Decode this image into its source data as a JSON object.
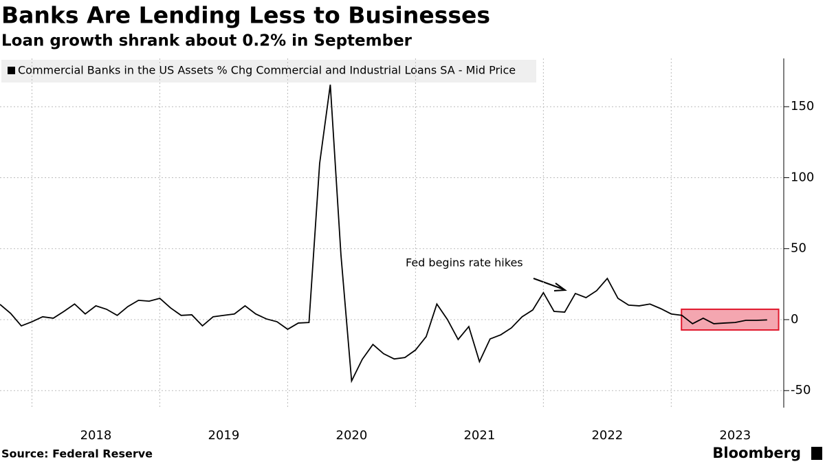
{
  "chart_data": {
    "type": "line",
    "title": "Banks Are Lending Less to Businesses",
    "subtitle": "Loan growth shrank about 0.2% in September",
    "source": "Source: Federal Reserve",
    "brand": "Bloomberg",
    "annotation": "Fed begins rate hikes",
    "x": [
      2017.75,
      2017.8333,
      2017.9167,
      2018,
      2018.0833,
      2018.1667,
      2018.25,
      2018.3333,
      2018.4167,
      2018.5,
      2018.5833,
      2018.6667,
      2018.75,
      2018.8333,
      2018.9167,
      2019,
      2019.0833,
      2019.1667,
      2019.25,
      2019.3333,
      2019.4167,
      2019.5,
      2019.5833,
      2019.6667,
      2019.75,
      2019.8333,
      2019.9167,
      2020,
      2020.0833,
      2020.1667,
      2020.25,
      2020.3333,
      2020.4167,
      2020.5,
      2020.5833,
      2020.6667,
      2020.75,
      2020.8333,
      2020.9167,
      2021,
      2021.0833,
      2021.1667,
      2021.25,
      2021.3333,
      2021.4167,
      2021.5,
      2021.5833,
      2021.6667,
      2021.75,
      2021.8333,
      2021.9167,
      2022,
      2022.0833,
      2022.1667,
      2022.25,
      2022.3333,
      2022.4167,
      2022.5,
      2022.5833,
      2022.6667,
      2022.75,
      2022.8333,
      2022.9167,
      2023,
      2023.0833,
      2023.1667,
      2023.25,
      2023.3333,
      2023.4167,
      2023.5,
      2023.5833,
      2023.6667,
      2023.75
    ],
    "series": [
      {
        "name": "Commercial Banks in the US Assets % Chg Commercial and Industrial Loans SA - Mid Price",
        "color": "#000000",
        "values": [
          10.7,
          4.4,
          -4.4,
          -1.5,
          2,
          1,
          5.8,
          11,
          4,
          9.7,
          7.3,
          3,
          9.2,
          13.6,
          13,
          15,
          8.3,
          3,
          3.4,
          -4.4,
          2,
          3,
          4,
          9.7,
          4,
          0.5,
          -1.5,
          -6.8,
          -2.4,
          -2,
          110,
          165.5,
          45.6,
          -43.2,
          -28,
          -17.5,
          -24,
          -27.7,
          -26.7,
          -21.4,
          -12,
          11,
          0,
          -14,
          -4.9,
          -29.6,
          -13.6,
          -10.7,
          -5.8,
          2,
          6.8,
          19,
          5.8,
          5.3,
          18.4,
          15.5,
          20.4,
          29,
          15,
          10.2,
          9.7,
          11,
          7.8,
          4,
          3,
          -2.9,
          1,
          -2.9,
          -2.4,
          -2,
          -0.5,
          -0.5,
          -0.2
        ]
      }
    ],
    "xlim": [
      2017.75,
      2023.88
    ],
    "xticks": [
      {
        "value": 2018,
        "label": "2018"
      },
      {
        "value": 2019,
        "label": "2019"
      },
      {
        "value": 2020,
        "label": "2020"
      },
      {
        "value": 2021,
        "label": "2021"
      },
      {
        "value": 2022,
        "label": "2022"
      },
      {
        "value": 2023,
        "label": "2023"
      }
    ],
    "ylim": [
      -62,
      184
    ],
    "yticks": [
      -50,
      0,
      50,
      100,
      150
    ],
    "grid": true,
    "highlight": {
      "x": [
        2023.08,
        2023.84
      ],
      "y": [
        -7.3,
        7.3
      ],
      "color": "#f4a6b0",
      "edge": "#e0182d"
    }
  }
}
